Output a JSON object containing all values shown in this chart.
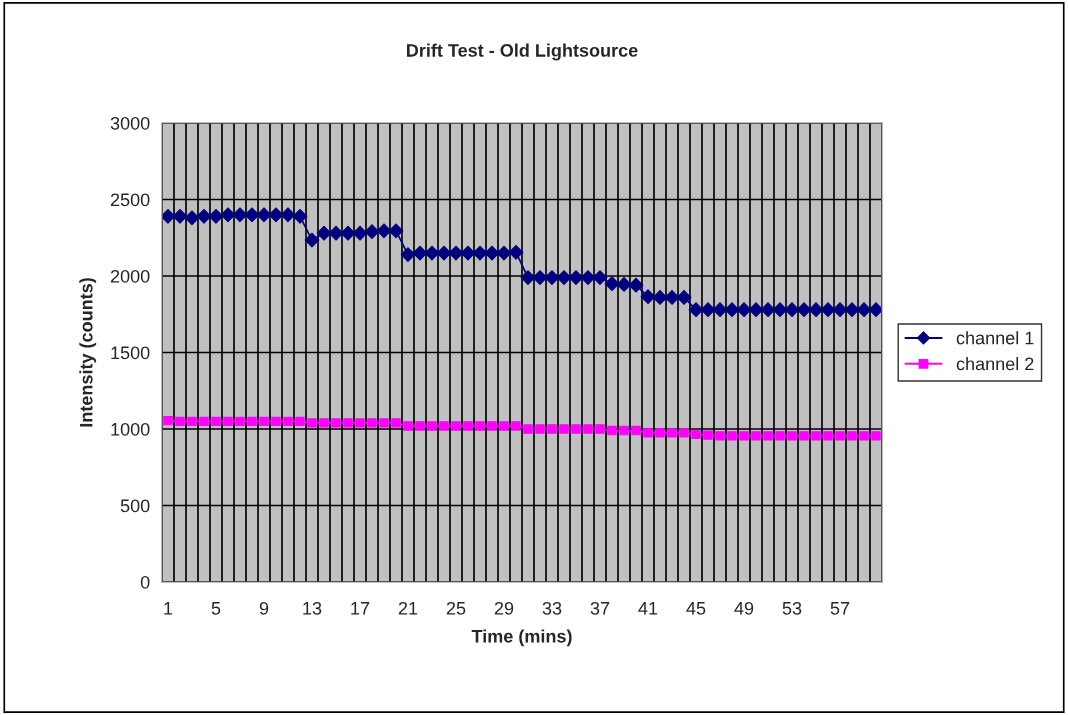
{
  "chart_data": {
    "type": "line",
    "title": "Drift Test - Old Lightsource",
    "xlabel": "Time (mins)",
    "ylabel": "Intensity (counts)",
    "categories": [
      "1",
      null,
      null,
      null,
      "5",
      null,
      null,
      null,
      "9",
      null,
      null,
      null,
      "13",
      null,
      null,
      null,
      "17",
      null,
      null,
      null,
      "21",
      null,
      null,
      null,
      "25",
      null,
      null,
      null,
      "29",
      null,
      null,
      null,
      "33",
      null,
      null,
      null,
      "37",
      null,
      null,
      null,
      "41",
      null,
      null,
      null,
      "45",
      null,
      null,
      null,
      "49",
      null,
      null,
      null,
      "53",
      null,
      null,
      null,
      "57",
      null,
      null,
      null
    ],
    "series": [
      {
        "name": "channel 1",
        "color": "#000080",
        "marker": "diamond",
        "values": [
          2390,
          2390,
          2380,
          2390,
          2390,
          2400,
          2400,
          2400,
          2400,
          2400,
          2400,
          2390,
          2235,
          2280,
          2280,
          2280,
          2280,
          2290,
          2295,
          2295,
          2140,
          2150,
          2150,
          2150,
          2150,
          2150,
          2150,
          2150,
          2150,
          2155,
          1990,
          1990,
          1990,
          1990,
          1990,
          1990,
          1990,
          1950,
          1945,
          1940,
          1865,
          1860,
          1860,
          1860,
          1780,
          1780,
          1780,
          1780,
          1780,
          1780,
          1780,
          1780,
          1780,
          1780,
          1780,
          1780,
          1780,
          1780,
          1780,
          1780
        ]
      },
      {
        "name": "channel 2",
        "color": "#ff00ff",
        "marker": "square",
        "values": [
          1055,
          1050,
          1050,
          1050,
          1050,
          1050,
          1050,
          1050,
          1050,
          1050,
          1050,
          1050,
          1040,
          1040,
          1040,
          1040,
          1040,
          1040,
          1040,
          1040,
          1020,
          1020,
          1020,
          1020,
          1020,
          1020,
          1020,
          1020,
          1020,
          1020,
          1000,
          1000,
          1000,
          1000,
          1000,
          1000,
          1000,
          990,
          990,
          990,
          975,
          975,
          975,
          975,
          965,
          960,
          955,
          955,
          955,
          955,
          955,
          955,
          955,
          955,
          955,
          955,
          955,
          955,
          955,
          955
        ]
      }
    ],
    "ylim": [
      0,
      3000
    ],
    "yticks": [
      0,
      500,
      1000,
      1500,
      2000,
      2500,
      3000
    ],
    "grid": true,
    "legend": "right",
    "line_style": "solid"
  }
}
